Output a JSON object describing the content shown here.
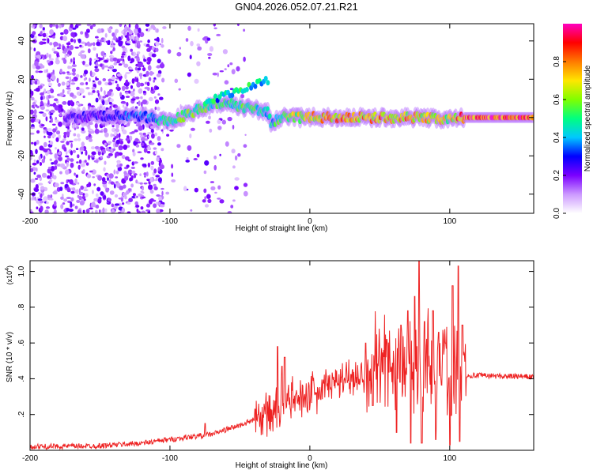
{
  "figure": {
    "title": "GN04.2026.052.07.21.R21"
  },
  "chart_data": [
    {
      "type": "heatmap",
      "title": "GN04.2026.052.07.21.R21",
      "xlabel": "Height of straight line (km)",
      "ylabel": "Frequency (Hz)",
      "xlim": [
        -200,
        160
      ],
      "ylim": [
        -50,
        49
      ],
      "xticks": [
        -200,
        -100,
        0,
        100
      ],
      "yticks": [
        -40,
        -20,
        0,
        20,
        40
      ],
      "colorbar": {
        "label": "Normalized spectral amplitude",
        "range": [
          0,
          1
        ],
        "ticks": [
          "0.0",
          "0.2",
          "0.4",
          "0.6",
          "0.8"
        ],
        "colormap": [
          "#ffffff",
          "#cc99ff",
          "#7b00ff",
          "#0000ff",
          "#00c8ff",
          "#00ff80",
          "#80ff00",
          "#ffe600",
          "#ff7a00",
          "#ff0000",
          "#ff00c0"
        ]
      },
      "ridge": [
        {
          "x": -170,
          "f": 0,
          "a": 0.25
        },
        {
          "x": -140,
          "f": 1,
          "a": 0.3
        },
        {
          "x": -115,
          "f": 0,
          "a": 0.4
        },
        {
          "x": -100,
          "f": -2,
          "a": 0.55
        },
        {
          "x": -80,
          "f": 4,
          "a": 0.6
        },
        {
          "x": -60,
          "f": 8,
          "a": 0.5
        },
        {
          "x": -45,
          "f": 5,
          "a": 0.55
        },
        {
          "x": -30,
          "f": 3,
          "a": 0.45
        },
        {
          "x": -28,
          "f": -3,
          "a": 0.45
        },
        {
          "x": -20,
          "f": 0,
          "a": 0.6
        },
        {
          "x": 0,
          "f": 0,
          "a": 0.75
        },
        {
          "x": 20,
          "f": 0,
          "a": 0.8
        },
        {
          "x": 50,
          "f": 0,
          "a": 0.8
        },
        {
          "x": 80,
          "f": 0,
          "a": 0.75
        },
        {
          "x": 100,
          "f": -1,
          "a": 0.7
        },
        {
          "x": 110,
          "f": 0,
          "a": 0.95
        },
        {
          "x": 160,
          "f": 0,
          "a": 0.95
        }
      ]
    },
    {
      "type": "line",
      "xlabel": "Height of straight line (km)",
      "ylabel": "SNR (10 * v/v)",
      "yscale_label": "(x10",
      "yscale_exp": "4",
      "yscale_close": ")",
      "xlim": [
        -200,
        160
      ],
      "ylim": [
        0,
        1.06
      ],
      "xticks": [
        -200,
        -100,
        0,
        100
      ],
      "yticks": [
        0.2,
        0.4,
        0.6,
        0.8,
        1.0
      ],
      "color": "#ee2222",
      "envelope": [
        {
          "x": -200,
          "y": 0.02
        },
        {
          "x": -150,
          "y": 0.025
        },
        {
          "x": -120,
          "y": 0.04
        },
        {
          "x": -90,
          "y": 0.07
        },
        {
          "x": -70,
          "y": 0.09
        },
        {
          "x": -50,
          "y": 0.14
        },
        {
          "x": -30,
          "y": 0.2
        },
        {
          "x": -20,
          "y": 0.25
        },
        {
          "x": 0,
          "y": 0.32
        },
        {
          "x": 20,
          "y": 0.38
        },
        {
          "x": 40,
          "y": 0.44
        },
        {
          "x": 60,
          "y": 0.48
        },
        {
          "x": 80,
          "y": 0.5
        },
        {
          "x": 100,
          "y": 0.48
        },
        {
          "x": 110,
          "y": 0.42
        },
        {
          "x": 160,
          "y": 0.41
        }
      ],
      "spikes": [
        {
          "x": -75,
          "y": 0.15
        },
        {
          "x": -37,
          "y": 0.2
        },
        {
          "x": -23,
          "y": 0.58
        },
        {
          "x": -20,
          "y": 0.47
        },
        {
          "x": -18,
          "y": 0.52
        },
        {
          "x": 40,
          "y": 0.6
        },
        {
          "x": 55,
          "y": 0.62
        },
        {
          "x": 65,
          "y": 0.7
        },
        {
          "x": 70,
          "y": 0.78
        },
        {
          "x": 75,
          "y": 0.86
        },
        {
          "x": 78,
          "y": 1.06
        },
        {
          "x": 82,
          "y": 0.72
        },
        {
          "x": 88,
          "y": 0.78
        },
        {
          "x": 92,
          "y": 0.66
        },
        {
          "x": 97,
          "y": 0.6
        },
        {
          "x": 102,
          "y": 0.92
        },
        {
          "x": 106,
          "y": 1.03
        },
        {
          "x": 109,
          "y": 0.7
        }
      ],
      "dips": [
        {
          "x": 45,
          "y": 0.25
        },
        {
          "x": 62,
          "y": 0.1
        },
        {
          "x": 72,
          "y": 0.04
        },
        {
          "x": 80,
          "y": 0.04
        },
        {
          "x": 90,
          "y": 0.06
        },
        {
          "x": 100,
          "y": 0.03
        },
        {
          "x": 107,
          "y": 0.05
        }
      ]
    }
  ]
}
